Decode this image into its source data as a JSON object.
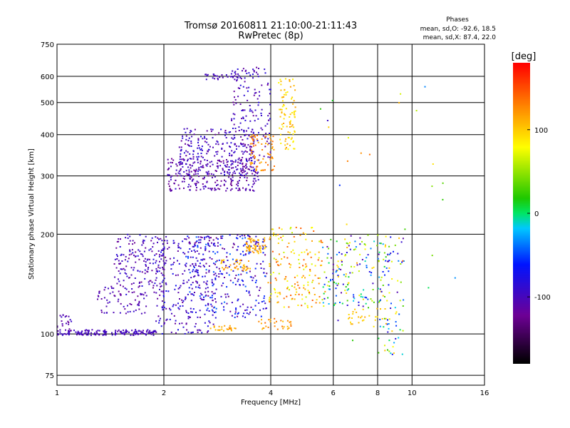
{
  "chart_data": {
    "type": "scatter",
    "title": "Tromsø 20160811 21:10:00-21:11:43",
    "subtitle": "RwPretec (8p)",
    "xlabel": "Frequency [MHz]",
    "ylabel": "Stationary phase Virtual Height [km]",
    "x_scale": "log2",
    "y_scale": "log",
    "xlim": [
      1,
      16
    ],
    "ylim": [
      70,
      750
    ],
    "x_ticks": [
      1,
      2,
      4,
      6,
      8,
      10,
      16
    ],
    "x_tick_labels": [
      "1",
      "2",
      "4",
      "6",
      "8",
      "10",
      "16"
    ],
    "y_ticks": [
      75,
      100,
      200,
      300,
      400,
      500,
      600,
      750
    ],
    "y_tick_labels": [
      "75",
      "100",
      "200",
      "300",
      "400",
      "500",
      "600",
      "750"
    ],
    "grid": true,
    "phases_box": {
      "title": "Phases",
      "line1": "mean, sd,O: -92.6, 18.5",
      "line2": "mean, sd,X: 87.4, 22.0"
    },
    "colorbar": {
      "label": "[deg]",
      "range": [
        -180,
        180
      ],
      "ticks": [
        -100,
        0,
        100
      ],
      "tick_labels": [
        "-100",
        "0",
        "100"
      ]
    },
    "clusters": [
      {
        "f": [
          1.0,
          1.9
        ],
        "h": [
          99,
          103
        ],
        "ph": [
          -110,
          -90
        ],
        "n": 160,
        "dist": "line"
      },
      {
        "f": [
          1.0,
          1.1
        ],
        "h": [
          100,
          116
        ],
        "ph": [
          -120,
          -90
        ],
        "n": 25
      },
      {
        "f": [
          1.45,
          2.05
        ],
        "h": [
          130,
          200
        ],
        "ph": [
          -125,
          -80
        ],
        "n": 190
      },
      {
        "f": [
          1.3,
          1.8
        ],
        "h": [
          115,
          140
        ],
        "ph": [
          -120,
          -90
        ],
        "n": 60
      },
      {
        "f": [
          1.9,
          2.8
        ],
        "h": [
          100,
          195
        ],
        "ph": [
          -120,
          -70
        ],
        "n": 240
      },
      {
        "f": [
          2.3,
          3.9
        ],
        "h": [
          112,
          200
        ],
        "ph": [
          -130,
          -40
        ],
        "n": 300
      },
      {
        "f": [
          2.7,
          3.2
        ],
        "h": [
          102,
          106
        ],
        "ph": [
          100,
          130
        ],
        "n": 25
      },
      {
        "f": [
          2.9,
          3.5
        ],
        "h": [
          155,
          168
        ],
        "ph": [
          100,
          130
        ],
        "n": 40
      },
      {
        "f": [
          3.4,
          3.9
        ],
        "h": [
          175,
          195
        ],
        "ph": [
          95,
          125
        ],
        "n": 60
      },
      {
        "f": [
          3.7,
          4.6
        ],
        "h": [
          103,
          112
        ],
        "ph": [
          100,
          140
        ],
        "n": 30
      },
      {
        "f": [
          3.9,
          5.6
        ],
        "h": [
          120,
          210
        ],
        "ph": [
          60,
          150
        ],
        "n": 170
      },
      {
        "f": [
          2.05,
          3.7
        ],
        "h": [
          270,
          340
        ],
        "ph": [
          -130,
          -90
        ],
        "n": 260
      },
      {
        "f": [
          2.2,
          3.6
        ],
        "h": [
          300,
          420
        ],
        "ph": [
          -120,
          -80
        ],
        "n": 220
      },
      {
        "f": [
          3.1,
          4.0
        ],
        "h": [
          330,
          640
        ],
        "ph": [
          -120,
          -80
        ],
        "n": 160
      },
      {
        "f": [
          3.5,
          4.1
        ],
        "h": [
          310,
          400
        ],
        "ph": [
          110,
          140
        ],
        "n": 70
      },
      {
        "f": [
          4.2,
          4.7
        ],
        "h": [
          360,
          600
        ],
        "ph": [
          80,
          120
        ],
        "n": 90
      },
      {
        "f": [
          2.6,
          3.3
        ],
        "h": [
          585,
          610
        ],
        "ph": [
          -110,
          -90
        ],
        "n": 30
      },
      {
        "f": [
          5.6,
          8.6
        ],
        "h": [
          120,
          200
        ],
        "ph": [
          -120,
          120
        ],
        "n": 160
      },
      {
        "f": [
          8.0,
          9.5
        ],
        "h": [
          85,
          200
        ],
        "ph": [
          -120,
          110
        ],
        "n": 80
      },
      {
        "f": [
          6.5,
          8.5
        ],
        "h": [
          105,
          120
        ],
        "ph": [
          90,
          120
        ],
        "n": 30
      },
      {
        "f": [
          5.5,
          13.5
        ],
        "h": [
          95,
          620
        ],
        "ph": [
          -110,
          150
        ],
        "n": 30
      }
    ]
  }
}
